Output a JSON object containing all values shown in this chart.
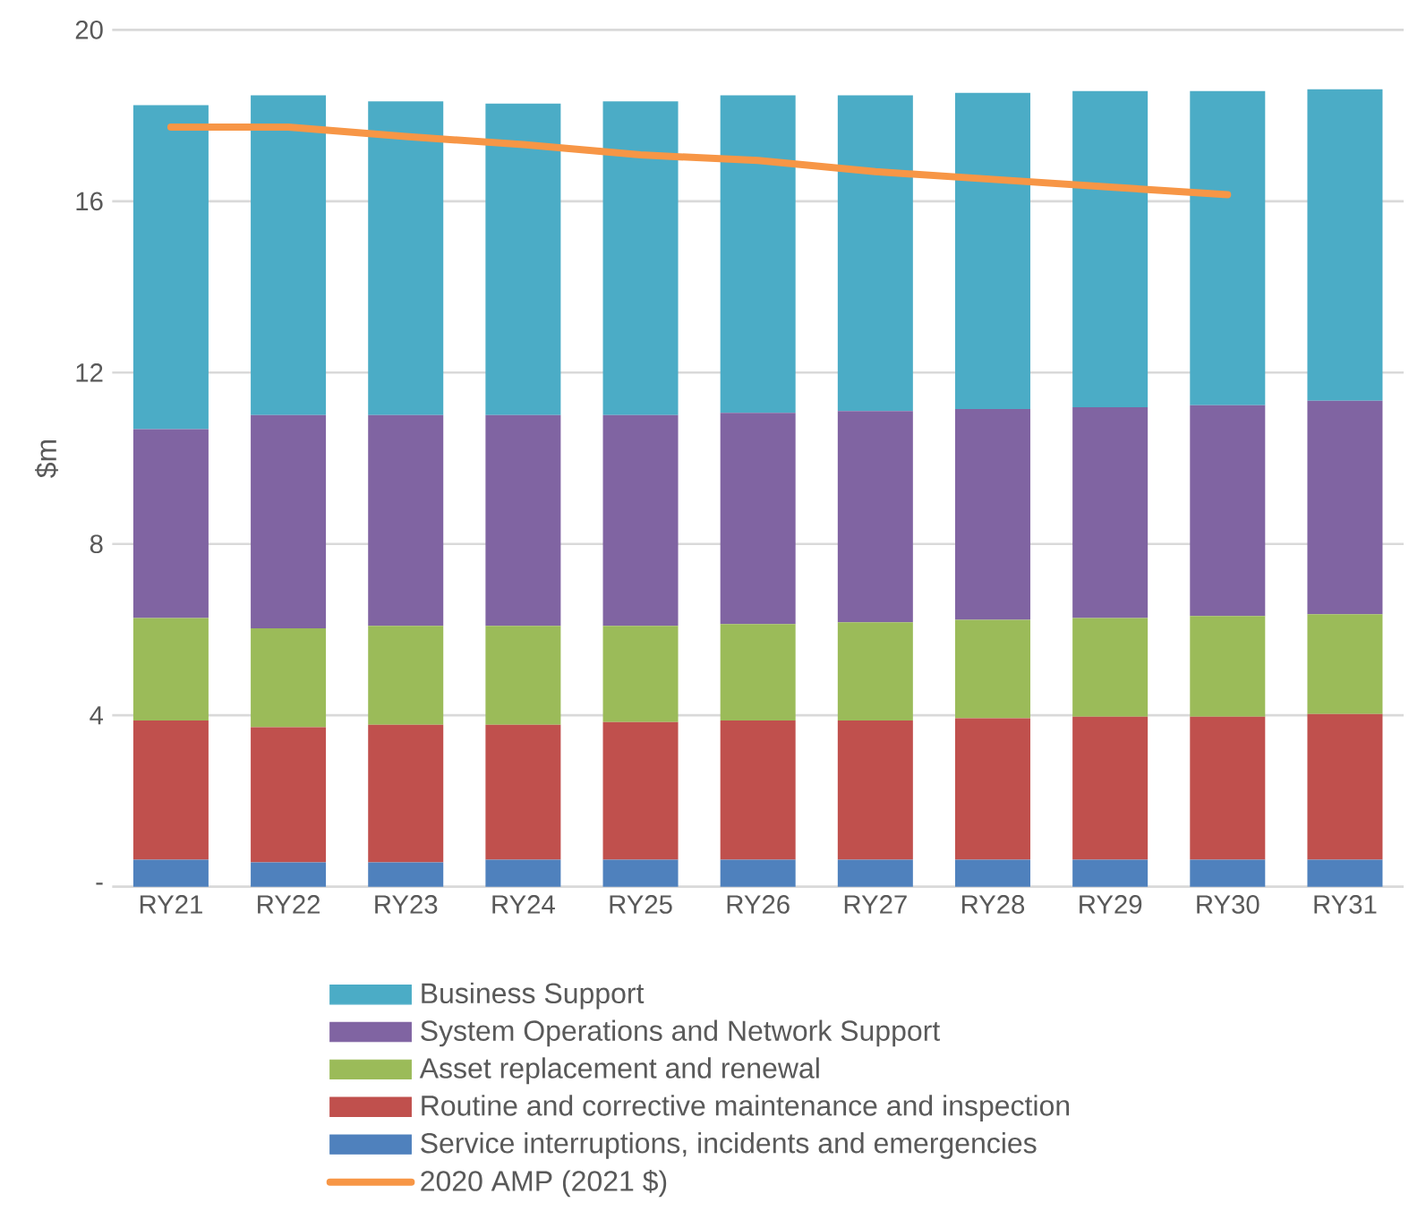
{
  "chart_data": {
    "type": "bar",
    "stacked": true,
    "ylabel": "$m",
    "categories": [
      "RY21",
      "RY22",
      "RY23",
      "RY24",
      "RY25",
      "RY26",
      "RY27",
      "RY28",
      "RY29",
      "RY30",
      "RY31"
    ],
    "ylim": [
      0,
      20
    ],
    "yticks": [
      {
        "value": 0,
        "label": "-"
      },
      4,
      8,
      12,
      16,
      20
    ],
    "grid": "y",
    "legend": "bottom",
    "series": [
      {
        "name": "Service interruptions, incidents and emergencies",
        "color": "#4f81bd",
        "values": [
          0.63,
          0.57,
          0.57,
          0.63,
          0.63,
          0.63,
          0.63,
          0.63,
          0.63,
          0.63,
          0.63
        ]
      },
      {
        "name": "Routine and corrective maintenance and inspection",
        "color": "#c0504d",
        "values": [
          3.25,
          3.15,
          3.21,
          3.15,
          3.21,
          3.25,
          3.25,
          3.3,
          3.34,
          3.34,
          3.4
        ]
      },
      {
        "name": "Asset replacement and renewal",
        "color": "#9bbb59",
        "values": [
          2.39,
          2.31,
          2.31,
          2.31,
          2.25,
          2.25,
          2.29,
          2.3,
          2.3,
          2.35,
          2.33
        ]
      },
      {
        "name": "System Operations and Network Support",
        "color": "#8064a2",
        "values": [
          4.41,
          4.98,
          4.92,
          4.92,
          4.92,
          4.93,
          4.93,
          4.92,
          4.92,
          4.92,
          4.98
        ]
      },
      {
        "name": "Business Support",
        "color": "#4bacc6",
        "values": [
          7.56,
          7.46,
          7.32,
          7.27,
          7.32,
          7.41,
          7.37,
          7.38,
          7.38,
          7.33,
          7.27
        ]
      },
      {
        "name": "2020 AMP (2021 $)",
        "type": "line",
        "color": "#f79646",
        "values": [
          17.73,
          17.73,
          17.51,
          17.32,
          17.08,
          16.95,
          16.69,
          16.51,
          16.33,
          16.15,
          null
        ]
      }
    ]
  }
}
